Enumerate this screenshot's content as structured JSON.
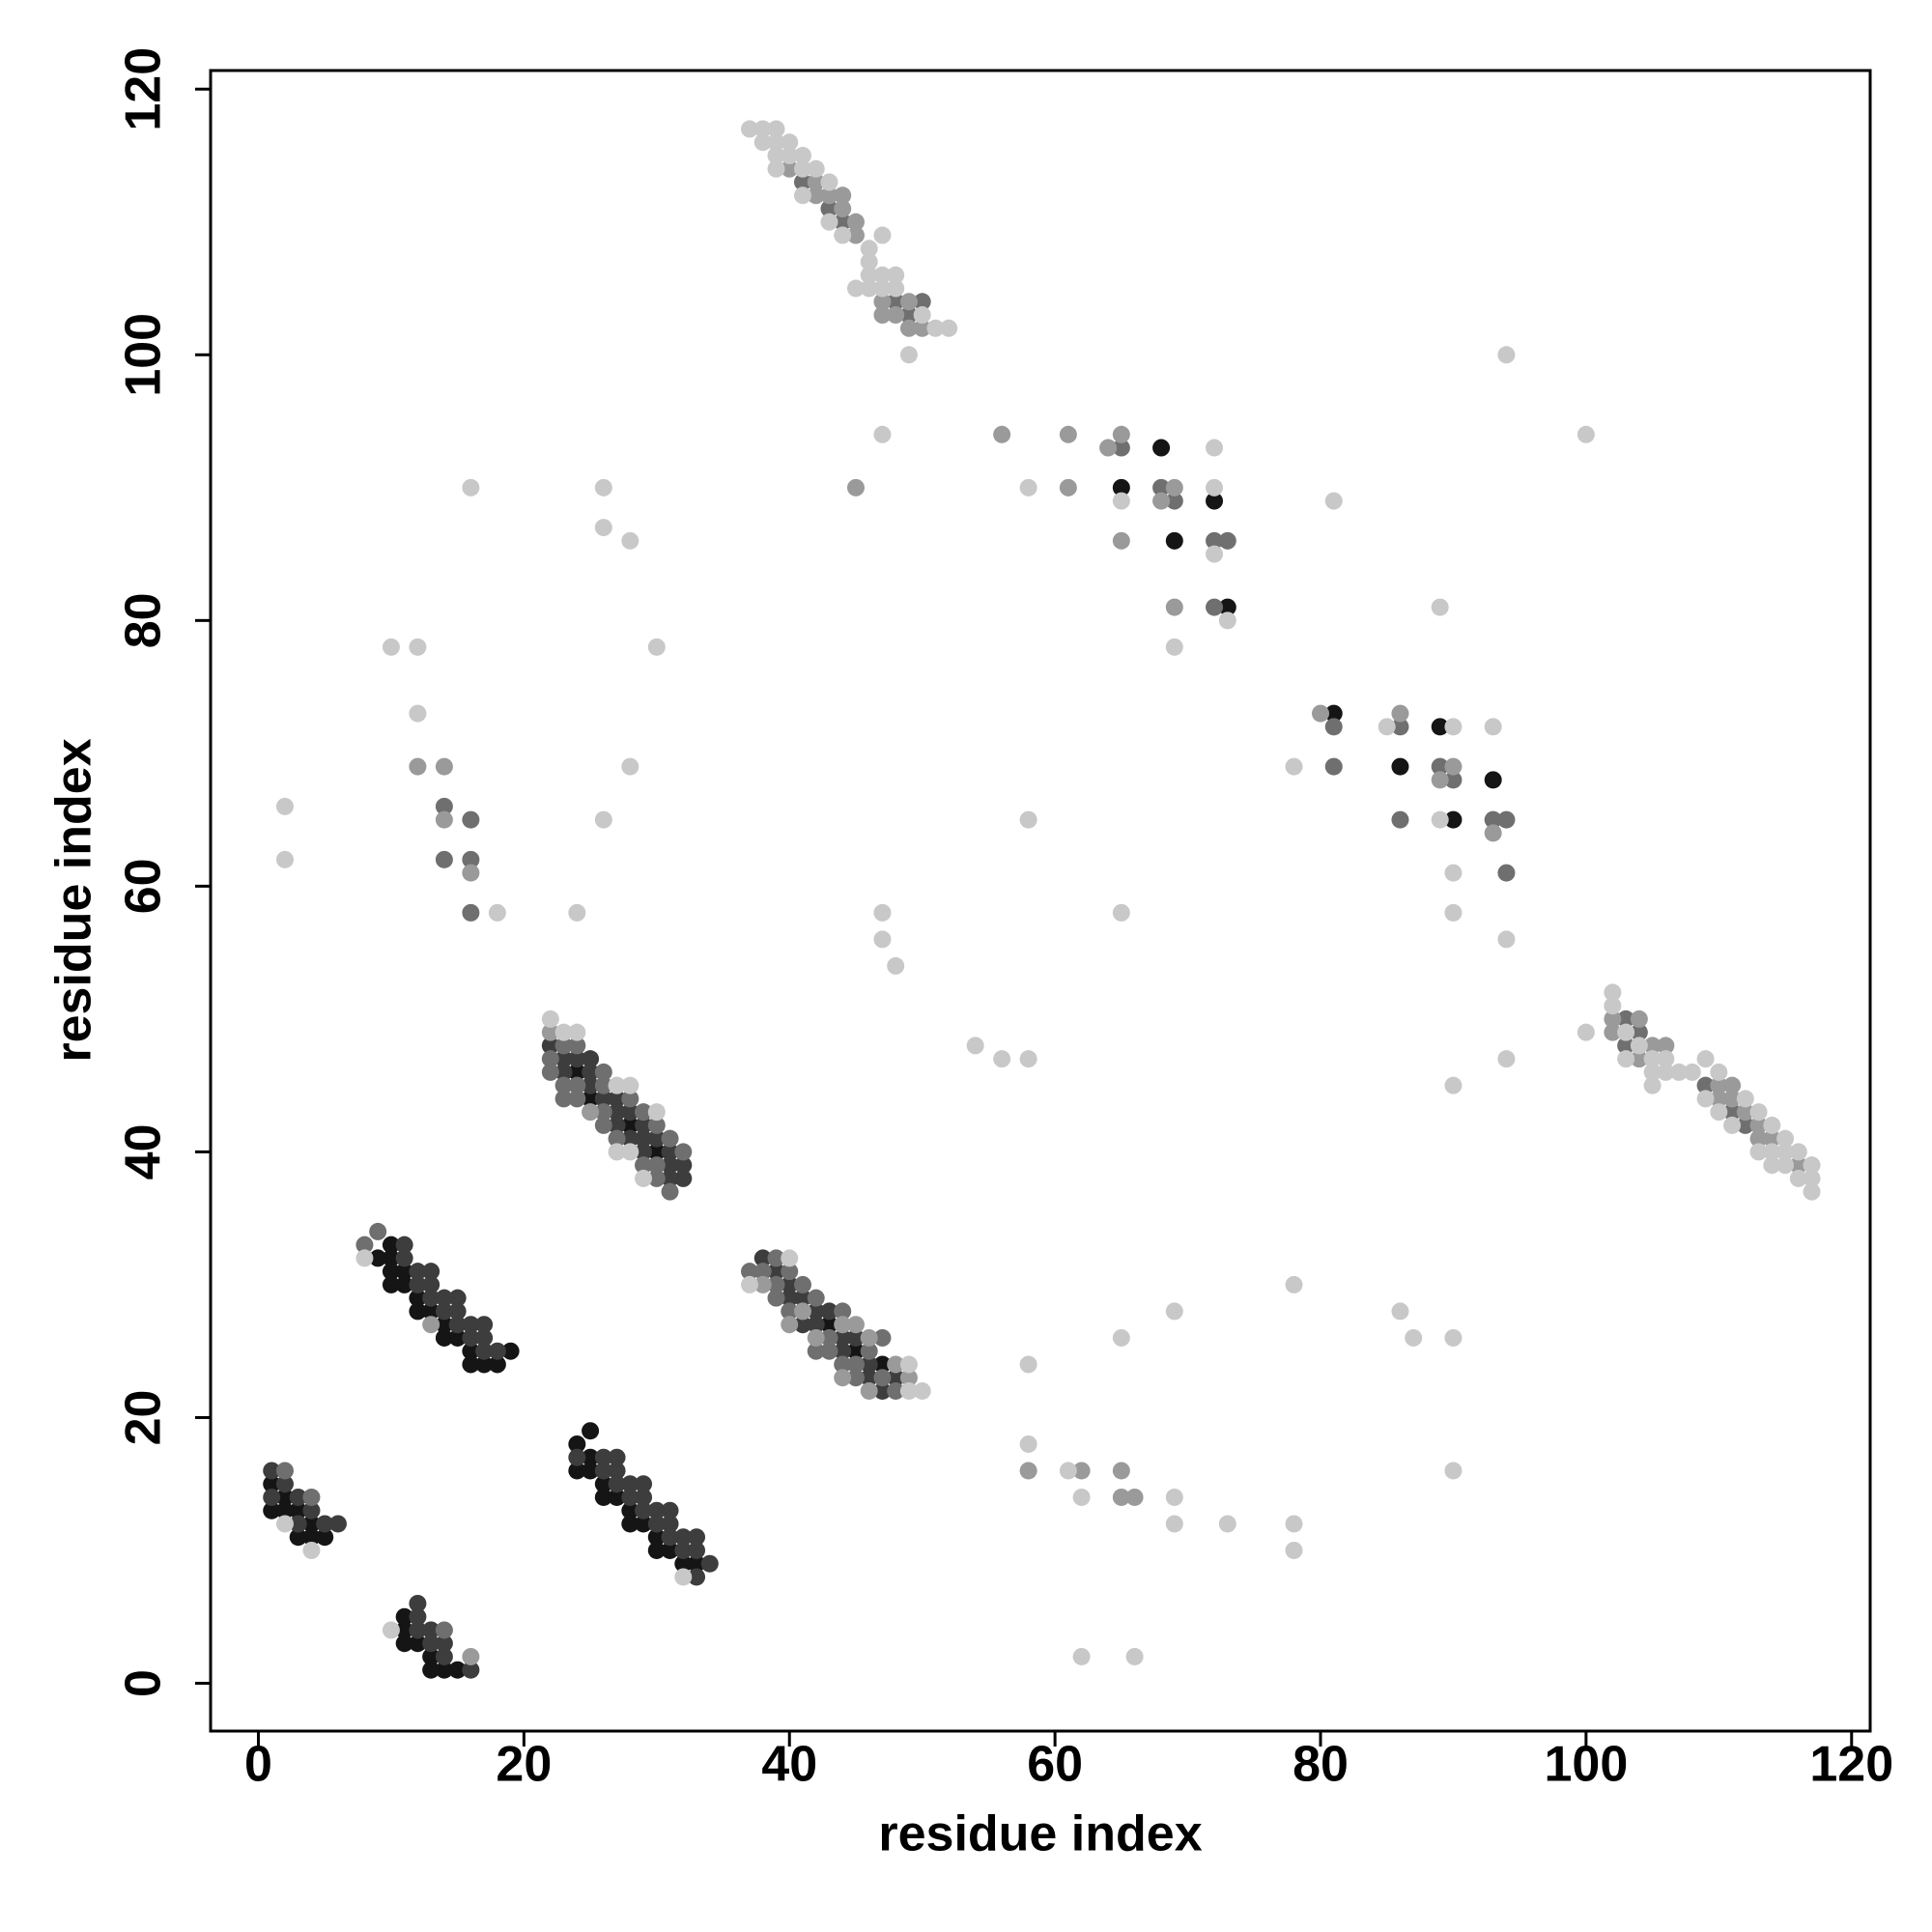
{
  "chart_data": {
    "type": "scatter",
    "xlabel": "residue index",
    "ylabel": "residue index",
    "xlim": [
      -3.6,
      121.4
    ],
    "ylim": [
      -3.6,
      121.4
    ],
    "xticks": [
      0,
      20,
      40,
      60,
      80,
      100,
      120
    ],
    "yticks": [
      0,
      20,
      40,
      60,
      80,
      100,
      120
    ],
    "grid": false,
    "series": [
      {
        "color": "#151515",
        "x": [
          1,
          2,
          3,
          1,
          2,
          4,
          3,
          4,
          5,
          11,
          11,
          12,
          13,
          14,
          13,
          15,
          11,
          10,
          10,
          11,
          10,
          11,
          12,
          12,
          13,
          14,
          14,
          15,
          16,
          16,
          17,
          18,
          19,
          9,
          10,
          25,
          24,
          25,
          24,
          25,
          26,
          26,
          27,
          28,
          28,
          29,
          30,
          30,
          31,
          32,
          33,
          24,
          25,
          28,
          30,
          43,
          45,
          47,
          65,
          68,
          69,
          72,
          73,
          81,
          86,
          89,
          90,
          93
        ],
        "values": [
          15,
          14,
          13,
          13,
          13,
          12,
          11,
          11,
          11,
          5,
          4,
          3,
          2,
          1,
          1,
          1,
          3,
          32,
          31,
          31,
          30,
          30,
          29,
          28,
          28,
          27,
          26,
          26,
          25,
          24,
          24,
          24,
          25,
          32,
          33,
          19,
          18,
          17,
          16,
          16,
          15,
          14,
          14,
          13,
          12,
          12,
          11,
          10,
          10,
          9,
          9,
          46,
          44,
          42,
          40,
          27,
          25,
          24,
          90,
          93,
          86,
          89,
          81,
          73,
          69,
          72,
          65,
          68
        ]
      },
      {
        "color": "#3d3d3d",
        "x": [
          1,
          2,
          1,
          3,
          3,
          5,
          6,
          4,
          12,
          12,
          13,
          14,
          13,
          14,
          16,
          12,
          11,
          11,
          12,
          13,
          12,
          13,
          13,
          14,
          15,
          15,
          16,
          16,
          17,
          17,
          18,
          14,
          15,
          17,
          24,
          26,
          27,
          26,
          27,
          28,
          29,
          28,
          29,
          30,
          31,
          29,
          30,
          31,
          31,
          32,
          32,
          33,
          33,
          34,
          33,
          27,
          23,
          23,
          24,
          25,
          25,
          26,
          27,
          27,
          28,
          27,
          29,
          28,
          29,
          29,
          31,
          30,
          31,
          32,
          31,
          32,
          22,
          25,
          38,
          39,
          40,
          41,
          40,
          42,
          41,
          42,
          44,
          44,
          46,
          46,
          48,
          43,
          45,
          47
        ],
        "values": [
          16,
          15,
          14,
          14,
          12,
          12,
          12,
          13,
          5,
          4,
          4,
          3,
          3,
          2,
          1,
          6,
          33,
          32,
          31,
          31,
          30,
          30,
          29,
          28,
          28,
          27,
          27,
          26,
          26,
          25,
          25,
          29,
          29,
          27,
          17,
          17,
          16,
          16,
          15,
          15,
          14,
          14,
          13,
          13,
          13,
          15,
          12,
          12,
          11,
          11,
          10,
          10,
          11,
          9,
          8,
          17,
          47,
          46,
          47,
          46,
          45,
          44,
          44,
          43,
          43,
          42,
          42,
          41,
          41,
          40,
          40,
          41,
          39,
          38,
          38,
          39,
          48,
          47,
          32,
          31,
          30,
          29,
          29,
          28,
          27,
          27,
          26,
          25,
          24,
          23,
          23,
          28,
          26,
          22
        ]
      },
      {
        "color": "#6f6f6f",
        "x": [
          2,
          4,
          14,
          8,
          9,
          22,
          22,
          23,
          24,
          23,
          24,
          26,
          26,
          24,
          23,
          26,
          28,
          26,
          30,
          29,
          31,
          27,
          30,
          29,
          32,
          31,
          30,
          37,
          38,
          39,
          39,
          40,
          41,
          39,
          40,
          42,
          44,
          43,
          42,
          44,
          45,
          45,
          47,
          47,
          48,
          46,
          43,
          41,
          43,
          44,
          48,
          49,
          50,
          103,
          104,
          103,
          109,
          111,
          112,
          14,
          14,
          16,
          16,
          65,
          68,
          69,
          72,
          73,
          72,
          81,
          86,
          89,
          90,
          94,
          93,
          81,
          86,
          94,
          16
        ],
        "values": [
          16,
          14,
          4,
          33,
          34,
          47,
          46,
          48,
          48,
          45,
          45,
          46,
          45,
          44,
          44,
          43,
          44,
          42,
          42,
          43,
          41,
          41,
          39,
          39,
          40,
          37,
          38,
          31,
          31,
          32,
          30,
          31,
          30,
          29,
          28,
          29,
          28,
          26,
          25,
          24,
          24,
          23,
          26,
          23,
          22,
          25,
          25,
          113,
          111,
          110,
          104,
          103,
          104,
          50,
          49,
          48,
          45,
          43,
          42,
          66,
          62,
          65,
          62,
          93,
          90,
          89,
          86,
          86,
          81,
          72,
          72,
          69,
          68,
          65,
          65,
          69,
          65,
          61,
          58
        ]
      },
      {
        "color": "#9a9a9a",
        "x": [
          16,
          13,
          22,
          25,
          38,
          40,
          41,
          44,
          42,
          45,
          46,
          44,
          49,
          48,
          46,
          40,
          42,
          42,
          44,
          43,
          44,
          45,
          45,
          47,
          48,
          49,
          50,
          47,
          49,
          102,
          102,
          104,
          105,
          104,
          106,
          110,
          111,
          112,
          113,
          114,
          113,
          116,
          110,
          111,
          12,
          14,
          14,
          16,
          56,
          61,
          61,
          64,
          65,
          68,
          69,
          69,
          58,
          62,
          65,
          65,
          66,
          80,
          86,
          89,
          90,
          93,
          65,
          45
        ],
        "values": [
          2,
          27,
          49,
          43,
          30,
          27,
          28,
          27,
          26,
          27,
          26,
          23,
          23,
          24,
          22,
          114,
          113,
          112,
          112,
          112,
          111,
          110,
          109,
          103,
          103,
          102,
          102,
          104,
          104,
          50,
          49,
          50,
          48,
          47,
          48,
          44,
          45,
          43,
          42,
          41,
          41,
          39,
          45,
          44,
          69,
          69,
          65,
          61,
          94,
          94,
          90,
          93,
          86,
          89,
          81,
          90,
          16,
          16,
          16,
          14,
          14,
          73,
          73,
          68,
          69,
          64,
          94,
          90
        ]
      },
      {
        "color": "#c8c8c8",
        "x": [
          2,
          4,
          10,
          8,
          32,
          22,
          23,
          24,
          28,
          27,
          30,
          29,
          27,
          28,
          40,
          37,
          49,
          49,
          50,
          37,
          38,
          39,
          38,
          39,
          40,
          39,
          40,
          41,
          39,
          41,
          42,
          43,
          41,
          43,
          44,
          47,
          46,
          46,
          46,
          47,
          48,
          45,
          46,
          47,
          48,
          50,
          51,
          52,
          49,
          102,
          102,
          100,
          103,
          104,
          103,
          105,
          106,
          109,
          105,
          106,
          107,
          108,
          110,
          105,
          109,
          112,
          110,
          113,
          111,
          114,
          115,
          113,
          114,
          115,
          116,
          114,
          115,
          117,
          116,
          117,
          117,
          2,
          2,
          10,
          12,
          12,
          18,
          16,
          26,
          26,
          28,
          30,
          28,
          26,
          24,
          47,
          47,
          47,
          48,
          54,
          56,
          58,
          58,
          58,
          65,
          72,
          72,
          72,
          73,
          69,
          65,
          94,
          100,
          81,
          78,
          85,
          89,
          90,
          89,
          90,
          90,
          93,
          94,
          94,
          90,
          78,
          69,
          86,
          87,
          90,
          65,
          58,
          58,
          61,
          62,
          69,
          69,
          73,
          78,
          78,
          90,
          62,
          66
        ],
        "values": [
          12,
          10,
          4,
          32,
          8,
          50,
          49,
          49,
          45,
          45,
          43,
          38,
          40,
          40,
          32,
          30,
          24,
          22,
          22,
          117,
          117,
          117,
          116,
          116,
          116,
          115,
          115,
          115,
          114,
          114,
          114,
          113,
          112,
          110,
          109,
          109,
          108,
          107,
          106,
          106,
          106,
          105,
          105,
          105,
          105,
          103,
          102,
          102,
          100,
          52,
          51,
          49,
          49,
          48,
          47,
          47,
          47,
          47,
          46,
          46,
          46,
          46,
          46,
          45,
          44,
          44,
          43,
          43,
          42,
          42,
          41,
          40,
          40,
          40,
          40,
          39,
          39,
          39,
          38,
          38,
          37,
          66,
          62,
          78,
          78,
          73,
          58,
          90,
          90,
          87,
          86,
          78,
          69,
          65,
          58,
          94,
          58,
          56,
          54,
          48,
          47,
          47,
          65,
          90,
          89,
          93,
          90,
          85,
          80,
          78,
          58,
          100,
          94,
          89,
          69,
          72,
          81,
          72,
          65,
          61,
          58,
          72,
          56,
          47,
          45,
          30,
          28,
          28,
          26,
          26,
          26,
          24,
          18,
          16,
          14,
          12,
          14,
          12,
          12,
          10,
          16,
          2,
          2
        ]
      }
    ]
  }
}
